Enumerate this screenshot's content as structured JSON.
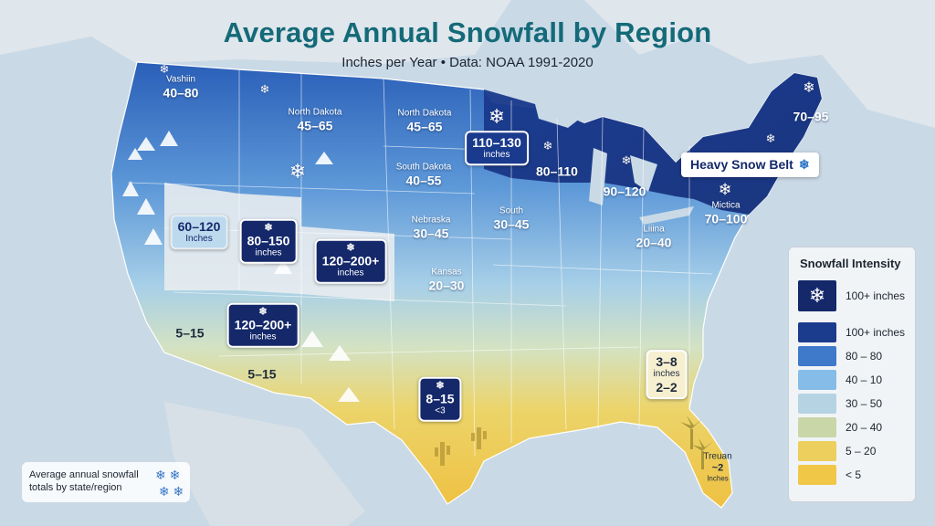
{
  "title": "Average Annual Snowfall by Region",
  "subtitle": "Inches per Year • Data: NOAA 1991-2020",
  "region_labels": [
    {
      "name": "Vashiin",
      "value": "40–80"
    },
    {
      "name": "North Dakota",
      "value": "45–65"
    },
    {
      "name": "North Dakota",
      "value": "45–65"
    },
    {
      "name": "South Dakota",
      "value": "40–55"
    },
    {
      "name": "Nebraska",
      "value": "30–45"
    },
    {
      "name": "South",
      "value": "30–45"
    },
    {
      "name": "Kansas",
      "value": "20–30"
    },
    {
      "name": "Liiina",
      "value": "20–40"
    },
    {
      "name": "Mictica",
      "value": "70–100"
    },
    {
      "name": "",
      "value": "70–95"
    },
    {
      "name": "",
      "value": "80–110"
    },
    {
      "name": "",
      "value": "90–120"
    },
    {
      "name": "",
      "value": "5–15"
    },
    {
      "name": "",
      "value": "5–15"
    }
  ],
  "badges": [
    {
      "value": "110–130",
      "unit": "inches"
    },
    {
      "value": "60–120",
      "unit": "Inches"
    },
    {
      "value": "80–150",
      "unit": "inches"
    },
    {
      "value": "120–200+",
      "unit": "inches"
    },
    {
      "value": "120–200+",
      "unit": "inches"
    },
    {
      "value": "8–15",
      "unit": "<3"
    }
  ],
  "southeast_label": {
    "line1": "3–8",
    "line2": "inches",
    "line3": "2–2"
  },
  "florida_label": {
    "line1": "Treuan",
    "line2": "~2",
    "line3": "Inches"
  },
  "callout": "Heavy Snow Belt",
  "snowflake_glyph": "❄",
  "legend": {
    "title": "Snowfall Intensity",
    "items": [
      {
        "label": "100+ inches",
        "color": "#14286a",
        "icon": "snowflake-icon"
      },
      {
        "label": "100+ inches",
        "color": "#1b3c8c"
      },
      {
        "label": "80 – 80",
        "color": "#3f79c9"
      },
      {
        "label": "40 – 10",
        "color": "#86bde8"
      },
      {
        "label": "30 – 50",
        "color": "#b6d3e4"
      },
      {
        "label": "20 – 40",
        "color": "#c9d6a8"
      },
      {
        "label": "5 – 20",
        "color": "#eccf5c"
      },
      {
        "label": "< 5",
        "color": "#f1c748"
      }
    ]
  },
  "note": {
    "text": "Average annual snowfall totals by state/region"
  },
  "colors": {
    "ocean": "#c9d9e6",
    "land_bg": "#e2e7eb",
    "title": "#146a78",
    "heavy": "#14286a",
    "warm": "#f0c440"
  }
}
